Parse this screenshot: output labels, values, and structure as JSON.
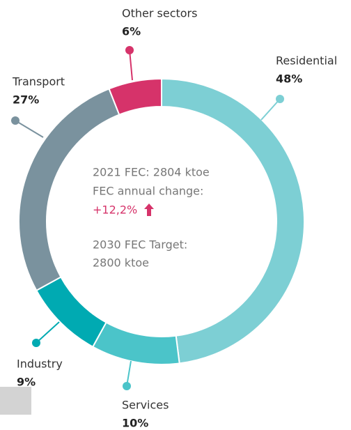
{
  "chart_data": {
    "type": "pie",
    "donut": true,
    "categories": [
      "Residential",
      "Services",
      "Industry",
      "Transport",
      "Other sectors"
    ],
    "values": [
      48,
      10,
      9,
      27,
      6
    ],
    "value_labels": [
      "48%",
      "10%",
      "9%",
      "27%",
      "6%"
    ],
    "colors": [
      "#7dcfd4",
      "#4bc4c9",
      "#00aab2",
      "#7a929e",
      "#d6336a"
    ],
    "annotations": [
      "2021 FEC: 2804 ktoe",
      "FEC annual change:",
      "+12,2%",
      "2030 FEC Target:",
      "2800 ktoe"
    ]
  }
}
